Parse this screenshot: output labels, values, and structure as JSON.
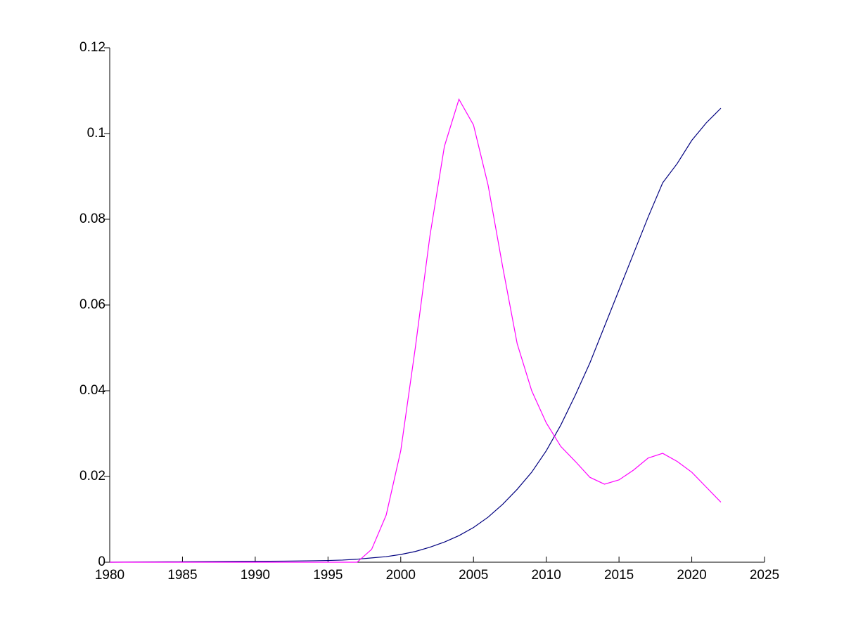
{
  "chart_data": {
    "type": "line",
    "x": [
      1980,
      1981,
      1982,
      1983,
      1984,
      1985,
      1986,
      1987,
      1988,
      1989,
      1990,
      1991,
      1992,
      1993,
      1994,
      1995,
      1996,
      1997,
      1998,
      1999,
      2000,
      2001,
      2002,
      2003,
      2004,
      2005,
      2006,
      2007,
      2008,
      2009,
      2010,
      2011,
      2012,
      2013,
      2014,
      2015,
      2016,
      2017,
      2018,
      2019,
      2020,
      2021,
      2022
    ],
    "series": [
      {
        "color": "#00007f",
        "values": [
          0,
          2e-05,
          4e-05,
          6e-05,
          8e-05,
          0.0001,
          0.00012,
          0.00014,
          0.00016,
          0.00018,
          0.0002,
          0.00023,
          0.00026,
          0.0003,
          0.00034,
          0.0004,
          0.0005,
          0.0007,
          0.001,
          0.0013,
          0.0018,
          0.0025,
          0.0035,
          0.0047,
          0.0062,
          0.0081,
          0.0105,
          0.0135,
          0.017,
          0.021,
          0.026,
          0.032,
          0.039,
          0.0465,
          0.055,
          0.0635,
          0.072,
          0.0805,
          0.0885,
          0.093,
          0.0984,
          0.1025,
          0.1059
        ]
      },
      {
        "color": "#ff00ff",
        "values": [
          0,
          0,
          0,
          0,
          0,
          0,
          0,
          0,
          0,
          0,
          0,
          0,
          0,
          0,
          0,
          0,
          0,
          0,
          0.003,
          0.011,
          0.026,
          0.05,
          0.076,
          0.097,
          0.108,
          0.102,
          0.088,
          0.069,
          0.051,
          0.04,
          0.0325,
          0.027,
          0.0235,
          0.0198,
          0.0182,
          0.0192,
          0.0215,
          0.0243,
          0.0254,
          0.0235,
          0.021,
          0.0175,
          0.014
        ]
      }
    ],
    "xlim": [
      1980,
      2025
    ],
    "xticks": [
      1980,
      1985,
      1990,
      1995,
      2000,
      2005,
      2010,
      2015,
      2020,
      2025
    ],
    "ylim": [
      0,
      0.12
    ],
    "yticks": [
      0,
      0.02,
      0.04,
      0.06,
      0.08,
      0.1,
      0.12
    ]
  }
}
